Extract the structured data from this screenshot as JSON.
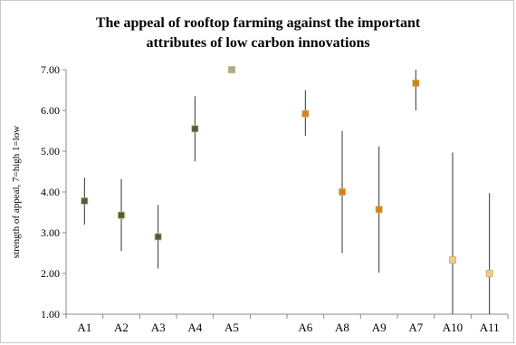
{
  "chart_data": {
    "type": "scatter",
    "title_line1": "The appeal of rooftop farming against the important",
    "title_line2": "attributes of low carbon innovations",
    "ylabel": "strength of appeal, 7=high 1=low",
    "xlabel": "",
    "ylim": [
      1,
      7
    ],
    "yticks": [
      "1.00",
      "2.00",
      "3.00",
      "4.00",
      "5.00",
      "6.00",
      "7.00"
    ],
    "grid": false,
    "legend": "none",
    "categories": [
      "A1",
      "A2",
      "A3",
      "A4",
      "A5",
      "A6",
      "A8",
      "A9",
      "A7",
      "A10",
      "A11"
    ],
    "points": [
      {
        "label": "A1",
        "slot": 0,
        "value": 3.78,
        "low": 3.2,
        "high": 4.35,
        "color": "#4d5a4a"
      },
      {
        "label": "A2",
        "slot": 1,
        "value": 3.43,
        "low": 2.55,
        "high": 4.32,
        "color": "#4d5a4a"
      },
      {
        "label": "A3",
        "slot": 2,
        "value": 2.9,
        "low": 2.12,
        "high": 3.68,
        "color": "#4d5a4a"
      },
      {
        "label": "A4",
        "slot": 3,
        "value": 5.55,
        "low": 4.75,
        "high": 6.35,
        "color": "#4d5a4a"
      },
      {
        "label": "A5",
        "slot": 4,
        "value": 7.0,
        "low": 7.0,
        "high": 7.0,
        "color": "#a6a6a6"
      },
      {
        "label": "A6",
        "slot": 6,
        "value": 5.92,
        "low": 5.38,
        "high": 6.5,
        "color": "#e07b1a"
      },
      {
        "label": "A8",
        "slot": 7,
        "value": 4.0,
        "low": 2.5,
        "high": 5.5,
        "color": "#e07b1a"
      },
      {
        "label": "A9",
        "slot": 8,
        "value": 3.57,
        "low": 2.02,
        "high": 5.12,
        "color": "#e07b1a"
      },
      {
        "label": "A7",
        "slot": 9,
        "value": 6.67,
        "low": 6.0,
        "high": 7.0,
        "color": "#e07b1a"
      },
      {
        "label": "A10",
        "slot": 10,
        "value": 2.33,
        "low": 1.0,
        "high": 4.97,
        "color": "#f5c78b"
      },
      {
        "label": "A11",
        "slot": 11,
        "value": 2.0,
        "low": 1.0,
        "high": 3.97,
        "color": "#f5c78b"
      }
    ]
  }
}
